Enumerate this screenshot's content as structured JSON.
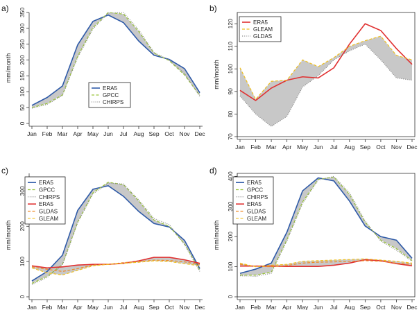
{
  "colors": {
    "ERA5_blue": "#2e5aa8",
    "ERA5_red": "#e03030",
    "GPCC": "#9ac43a",
    "CHIRPS": "#888888",
    "GLEAM": "#f0c020",
    "GLDAS": "#f08a24",
    "band": "#c8c8c8"
  },
  "chart_data": [
    {
      "panel": "a)",
      "type": "line",
      "categories": [
        "Jan",
        "Feb",
        "Mar",
        "Apr",
        "May",
        "Jun",
        "Jul",
        "Aug",
        "Sep",
        "Oct",
        "Nov",
        "Dec"
      ],
      "ylabel": "mm/month",
      "ylim": [
        0,
        350
      ],
      "yticks": [
        "0",
        "50",
        "100",
        "150",
        "200",
        "250",
        "300",
        "350"
      ],
      "series": [
        {
          "name": "ERA5",
          "color": "#2e5aa8",
          "style": "solid",
          "values": [
            57,
            82,
            118,
            248,
            322,
            342,
            318,
            260,
            215,
            202,
            173,
            97
          ]
        },
        {
          "name": "GPCC",
          "color": "#9ac43a",
          "style": "dashed",
          "values": [
            50,
            63,
            90,
            212,
            302,
            350,
            345,
            290,
            222,
            198,
            153,
            88
          ]
        },
        {
          "name": "CHIRPS",
          "color": "#888888",
          "style": "dotted",
          "values": [
            48,
            60,
            88,
            208,
            298,
            348,
            350,
            295,
            224,
            200,
            158,
            85
          ]
        }
      ],
      "band": {
        "between": [
          "ERA5",
          "GPCC"
        ],
        "color": "#c8c8c8"
      },
      "legend": {
        "placement": "middle-right",
        "entries": [
          "ERA5",
          "GPCC",
          "CHIRPS"
        ]
      }
    },
    {
      "panel": "b)",
      "type": "line",
      "categories": [
        "Jan",
        "Feb",
        "Mar",
        "Apr",
        "May",
        "Jun",
        "Jul",
        "Aug",
        "Sep",
        "Oct",
        "Nov",
        "Dec"
      ],
      "ylabel": "mm/month",
      "ylim": [
        70,
        125
      ],
      "yticks": [
        "70",
        "80",
        "90",
        "100",
        "110",
        "120"
      ],
      "series": [
        {
          "name": "ERA5",
          "color": "#e03030",
          "style": "solid",
          "values": [
            90.5,
            86,
            91.5,
            95,
            96.5,
            96,
            100.5,
            111,
            120,
            117,
            109,
            102
          ]
        },
        {
          "name": "GLEAM",
          "color": "#f0c020",
          "style": "dashed",
          "values": [
            100.5,
            86.5,
            94.5,
            95,
            104,
            101,
            105,
            110,
            112.5,
            114.5,
            106,
            104
          ]
        },
        {
          "name": "GLDAS",
          "color": "#888888",
          "style": "dotted",
          "values": [
            88,
            80,
            74.5,
            79,
            92,
            97,
            104,
            108,
            111,
            104,
            96,
            95
          ]
        }
      ],
      "band": {
        "between": [
          "GLEAM",
          "GLDAS"
        ],
        "color": "#c8c8c8"
      },
      "legend": {
        "placement": "top-left",
        "entries": [
          "ERA5",
          "GLEAM",
          "GLDAS"
        ]
      }
    },
    {
      "panel": "c)",
      "type": "line",
      "categories": [
        "Jan",
        "Feb",
        "Mar",
        "Apr",
        "May",
        "Jun",
        "Jul",
        "Aug",
        "Sep",
        "Oct",
        "Nov",
        "Dec"
      ],
      "ylabel": "mm/month",
      "ylim": [
        0,
        350
      ],
      "yticks": [
        "0",
        "100",
        "200",
        "300"
      ],
      "series": [
        {
          "name": "ERA5",
          "color": "#2e5aa8",
          "style": "solid",
          "values": [
            45,
            72,
            118,
            245,
            305,
            315,
            285,
            242,
            208,
            198,
            160,
            80
          ]
        },
        {
          "name": "GPCC",
          "color": "#9ac43a",
          "style": "dashed",
          "values": [
            38,
            58,
            92,
            212,
            295,
            325,
            318,
            272,
            218,
            200,
            150,
            75
          ]
        },
        {
          "name": "CHIRPS",
          "color": "#888888",
          "style": "dotted",
          "values": [
            35,
            55,
            90,
            210,
            292,
            322,
            320,
            275,
            222,
            205,
            148,
            72
          ]
        },
        {
          "name": "ERA5",
          "color": "#e03030",
          "style": "solid",
          "values": [
            88,
            82,
            85,
            90,
            92,
            92,
            95,
            102,
            112,
            112,
            105,
            95
          ]
        },
        {
          "name": "GLDAS",
          "color": "#f08a24",
          "style": "dashed",
          "values": [
            85,
            78,
            72,
            80,
            90,
            92,
            97,
            100,
            104,
            103,
            99,
            92
          ]
        },
        {
          "name": "GLEAM",
          "color": "#f0c020",
          "style": "dashed",
          "values": [
            82,
            68,
            62,
            75,
            88,
            92,
            95,
            98,
            102,
            100,
            94,
            88
          ]
        }
      ],
      "bands": [
        {
          "between": [
            "ERA5",
            "GPCC"
          ],
          "color": "#c8c8c8"
        },
        {
          "between": [
            "ERA5",
            "GLEAM"
          ],
          "color": "#c8c8c8"
        }
      ],
      "legend": {
        "placement": "top-left",
        "entries": [
          "ERA5",
          "GPCC",
          "CHIRPS",
          "ERA5",
          "GLDAS",
          "GLEAM"
        ]
      }
    },
    {
      "panel": "d)",
      "type": "line",
      "categories": [
        "Jan",
        "Feb",
        "Mar",
        "Apr",
        "May",
        "Jun",
        "Jul",
        "Aug",
        "Sep",
        "Oct",
        "Nov",
        "Dec"
      ],
      "ylabel": "mm/month",
      "ylim": [
        0,
        410
      ],
      "yticks": [
        "0",
        "100",
        "200",
        "300",
        "400"
      ],
      "series": [
        {
          "name": "ERA5",
          "color": "#2e5aa8",
          "style": "solid",
          "values": [
            78,
            92,
            112,
            215,
            352,
            395,
            385,
            318,
            235,
            200,
            188,
            128
          ]
        },
        {
          "name": "GPCC",
          "color": "#9ac43a",
          "style": "dashed",
          "values": [
            72,
            72,
            82,
            190,
            315,
            390,
            398,
            340,
            248,
            188,
            160,
            120
          ]
        },
        {
          "name": "CHIRPS",
          "color": "#888888",
          "style": "dotted",
          "values": [
            70,
            68,
            78,
            186,
            310,
            388,
            400,
            345,
            252,
            185,
            155,
            118
          ]
        },
        {
          "name": "ERA5",
          "color": "#e03030",
          "style": "solid",
          "values": [
            102,
            102,
            102,
            101,
            101,
            101,
            105,
            112,
            123,
            120,
            110,
            103
          ]
        },
        {
          "name": "GLDAS",
          "color": "#f08a24",
          "style": "dashed",
          "values": [
            108,
            101,
            100,
            104,
            112,
            115,
            116,
            118,
            120,
            118,
            112,
            108
          ]
        },
        {
          "name": "GLEAM",
          "color": "#f0c020",
          "style": "dashed",
          "values": [
            112,
            100,
            105,
            108,
            118,
            120,
            122,
            124,
            126,
            122,
            118,
            112
          ]
        }
      ],
      "bands": [
        {
          "between": [
            "ERA5",
            "GPCC"
          ],
          "color": "#c8c8c8"
        },
        {
          "between": [
            "ERA5",
            "GLEAM"
          ],
          "color": "#c8c8c8"
        }
      ],
      "legend": {
        "placement": "top-left",
        "entries": [
          "ERA5",
          "GPCC",
          "CHIRPS",
          "ERA5",
          "GLDAS",
          "GLEAM"
        ]
      }
    }
  ]
}
